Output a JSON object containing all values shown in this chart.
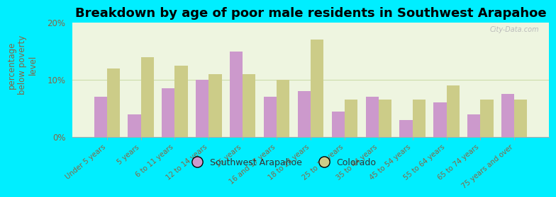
{
  "title": "Breakdown by age of poor male residents in Southwest Arapahoe",
  "ylabel": "percentage\nbelow poverty\nlevel",
  "categories": [
    "Under 5 years",
    "5 years",
    "6 to 11 years",
    "12 to 14 years",
    "15 years",
    "16 and 17 years",
    "18 to 24 years",
    "25 to 34 years",
    "35 to 44 years",
    "45 to 54 years",
    "55 to 64 years",
    "65 to 74 years",
    "75 years and over"
  ],
  "sw_arapahoe": [
    7.0,
    4.0,
    8.5,
    10.0,
    15.0,
    7.0,
    8.0,
    4.5,
    7.0,
    3.0,
    6.0,
    4.0,
    7.5
  ],
  "colorado": [
    12.0,
    14.0,
    12.5,
    11.0,
    11.0,
    10.0,
    17.0,
    6.5,
    6.5,
    6.5,
    9.0,
    6.5,
    6.5
  ],
  "bar_color_sw": "#cc99cc",
  "bar_color_co": "#cccc88",
  "plot_bg": "#eef5e0",
  "outer_bg": "#00eeff",
  "ylim": [
    0,
    20
  ],
  "yticks": [
    0,
    10,
    20
  ],
  "ytick_labels": [
    "0%",
    "10%",
    "20%"
  ],
  "legend_sw": "Southwest Arapahoe",
  "legend_co": "Colorado",
  "title_fontsize": 13,
  "tick_color": "#886644",
  "label_fontsize": 8.5
}
